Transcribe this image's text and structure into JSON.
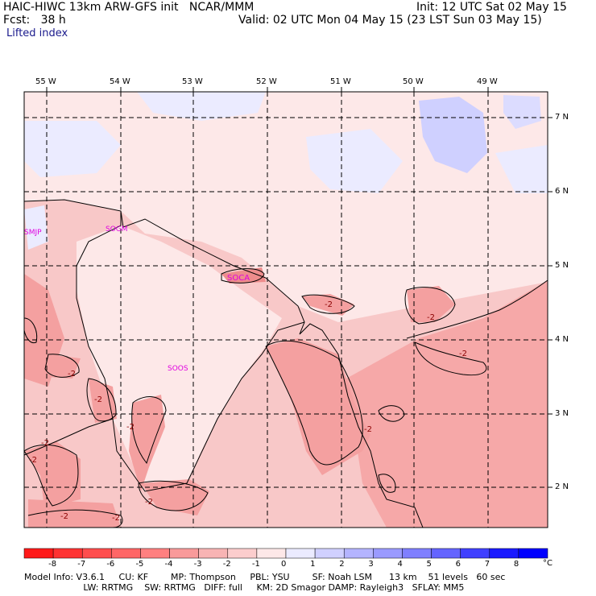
{
  "header": {
    "model_line": "HAIC-HIWC 13km ARW-GFS init   NCAR/MMM",
    "fcst_line": "Fcst:   38 h",
    "init_line": "Init: 12 UTC Sat 02 May 15",
    "valid_line": "Valid: 02 UTC Mon 04 May 15 (23 LST Sun 03 May 15)",
    "field_name": "Lifted index"
  },
  "lon_labels": [
    "55 W",
    "54 W",
    "53 W",
    "52 W",
    "51 W",
    "50 W",
    "49 W"
  ],
  "lat_labels": [
    "7 N",
    "6 N",
    "5 N",
    "4 N",
    "3 N",
    "2 N"
  ],
  "stations": [
    "SMJP",
    "SOGM",
    "SOCA",
    "SOOS"
  ],
  "contour_labels": [
    "-2",
    "-2",
    "-2",
    "-2",
    "-2",
    "-2",
    "-2",
    "-2",
    "-2",
    "-2",
    "-2",
    "-2"
  ],
  "colorbar": {
    "ticks": [
      "-8",
      "-7",
      "-6",
      "-5",
      "-4",
      "-3",
      "-2",
      "-1",
      "0",
      "1",
      "2",
      "3",
      "4",
      "5",
      "6",
      "7",
      "8"
    ],
    "unit": "°C",
    "colors": [
      "#ff1a1a",
      "#ff3333",
      "#ff4d4d",
      "#ff6666",
      "#ff8080",
      "#f99a9a",
      "#f8b4b4",
      "#fccdcd",
      "#fde8e8",
      "#ebebff",
      "#d0d0ff",
      "#b4b4ff",
      "#9a9aff",
      "#7f7fff",
      "#6464ff",
      "#4040ff",
      "#1a1aff",
      "#0000ff"
    ]
  },
  "footer": {
    "line1": "Model Info: V3.6.1     CU: KF        MP: Thompson     PBL: YSU        SF: Noah LSM      13 km    51 levels   60 sec",
    "line2": "                     LW: RRTMG    SW: RRTMG   DIFF: full     KM: 2D Smagor DAMP: Rayleigh3   SFLAY: MM5"
  }
}
